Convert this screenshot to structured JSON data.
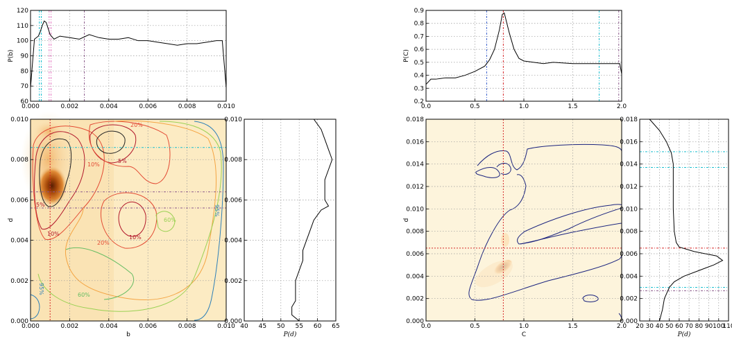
{
  "chart_data": [
    {
      "id": "left-top",
      "type": "line",
      "ylabel": "P(b)",
      "xlim": [
        0,
        0.01
      ],
      "ylim": [
        60,
        120
      ],
      "xticks": [
        "0.000",
        "0.002",
        "0.004",
        "0.006",
        "0.008",
        "0.010"
      ],
      "yticks": [
        "60",
        "70",
        "80",
        "90",
        "100",
        "110",
        "120"
      ],
      "x": [
        0,
        0.0002,
        0.0004,
        0.0005,
        0.0006,
        0.0007,
        0.0008,
        0.001,
        0.0012,
        0.0015,
        0.002,
        0.0025,
        0.003,
        0.0035,
        0.004,
        0.0045,
        0.005,
        0.0055,
        0.006,
        0.0065,
        0.007,
        0.0075,
        0.008,
        0.0085,
        0.009,
        0.0095,
        0.0098,
        0.01
      ],
      "values": [
        69,
        101,
        103,
        106,
        110,
        113,
        112,
        104,
        101,
        103,
        102,
        101,
        104,
        102,
        101,
        101,
        102,
        100,
        100,
        99,
        98,
        97,
        98,
        98,
        99,
        100,
        100,
        69
      ],
      "vlines": [
        {
          "x": 0.00045,
          "color": "#17becf"
        },
        {
          "x": 0.00055,
          "color": "#17becf"
        },
        {
          "x": 0.00095,
          "color": "#e377c2"
        },
        {
          "x": 0.00105,
          "color": "#e377c2"
        },
        {
          "x": 0.00275,
          "color": "#8b5a8b"
        }
      ]
    },
    {
      "id": "left-main",
      "type": "heatmap",
      "xlabel": "b",
      "ylabel": "d",
      "xlim": [
        0,
        0.01
      ],
      "ylim": [
        0,
        0.01
      ],
      "xticks": [
        "0.000",
        "0.002",
        "0.004",
        "0.006",
        "0.008",
        "0.010"
      ],
      "yticks": [
        "0.000",
        "0.002",
        "0.004",
        "0.006",
        "0.008",
        "0.010"
      ],
      "contour_labels": [
        "20%",
        "5%",
        "5%",
        "10%",
        "10%",
        "20%",
        "10%",
        "60%",
        "60%",
        "95%",
        "95%"
      ],
      "vline": {
        "x": 0.001,
        "color": "#d62728"
      },
      "hlines": [
        {
          "y": 0.0086,
          "color": "#17becf"
        },
        {
          "y": 0.0064,
          "color": "#8b5a8b"
        },
        {
          "y": 0.0056,
          "color": "#8b5a8b"
        }
      ]
    },
    {
      "id": "left-side",
      "type": "line",
      "xlabel": "P(d)",
      "xlim": [
        40,
        65
      ],
      "ylim": [
        0,
        0.01
      ],
      "xticks": [
        "40",
        "45",
        "50",
        "55",
        "60",
        "65"
      ],
      "yticks": [
        "0.000",
        "0.002",
        "0.004",
        "0.006",
        "0.008",
        "0.010"
      ],
      "y": [
        0,
        0.0003,
        0.0007,
        0.001,
        0.0015,
        0.002,
        0.0025,
        0.003,
        0.0035,
        0.004,
        0.0045,
        0.005,
        0.0055,
        0.0057,
        0.006,
        0.0065,
        0.007,
        0.0075,
        0.008,
        0.0085,
        0.009,
        0.0095,
        0.01
      ],
      "values": [
        55,
        53,
        53,
        54,
        54,
        54,
        55,
        56,
        56,
        57,
        58,
        59,
        61,
        63,
        62,
        62,
        62,
        63,
        64,
        63,
        62,
        61,
        59
      ]
    },
    {
      "id": "right-top",
      "type": "line",
      "ylabel": "P(C)",
      "xlim": [
        0,
        2
      ],
      "ylim": [
        0.2,
        0.9
      ],
      "xticks": [
        "0.0",
        "0.5",
        "1.0",
        "1.5",
        "2.0"
      ],
      "yticks": [
        "0.2",
        "0.3",
        "0.4",
        "0.5",
        "0.6",
        "0.7",
        "0.8",
        "0.9"
      ],
      "x": [
        0,
        0.05,
        0.1,
        0.2,
        0.3,
        0.4,
        0.5,
        0.6,
        0.65,
        0.7,
        0.75,
        0.78,
        0.8,
        0.85,
        0.9,
        0.95,
        1.0,
        1.1,
        1.2,
        1.3,
        1.5,
        1.7,
        1.9,
        1.98,
        2.0
      ],
      "values": [
        0.33,
        0.37,
        0.37,
        0.38,
        0.38,
        0.4,
        0.43,
        0.47,
        0.52,
        0.6,
        0.75,
        0.87,
        0.88,
        0.73,
        0.6,
        0.53,
        0.51,
        0.5,
        0.49,
        0.5,
        0.49,
        0.49,
        0.49,
        0.49,
        0.41
      ],
      "vlines": [
        {
          "x": 0.62,
          "color": "#3a5fcd"
        },
        {
          "x": 0.79,
          "color": "#d62728"
        },
        {
          "x": 1.77,
          "color": "#17becf"
        },
        {
          "x": 1.97,
          "color": "#8b5a8b"
        }
      ]
    },
    {
      "id": "right-main",
      "type": "heatmap",
      "xlabel": "C",
      "ylabel": "d",
      "xlim": [
        0,
        2
      ],
      "ylim": [
        0,
        0.018
      ],
      "xticks": [
        "0.0",
        "0.5",
        "1.0",
        "1.5",
        "2.0"
      ],
      "yticks": [
        "0.000",
        "0.002",
        "0.004",
        "0.006",
        "0.008",
        "0.010",
        "0.012",
        "0.014",
        "0.016",
        "0.018"
      ],
      "vline": {
        "x": 0.79,
        "color": "#d62728"
      },
      "hline": {
        "y": 0.0065,
        "color": "#d62728"
      }
    },
    {
      "id": "right-side",
      "type": "line",
      "xlabel": "P(d)",
      "xlim": [
        20,
        110
      ],
      "ylim": [
        0,
        0.018
      ],
      "xticks": [
        "20",
        "30",
        "40",
        "50",
        "60",
        "70",
        "80",
        "90",
        "100",
        "110"
      ],
      "yticks": [
        "0.000",
        "0.002",
        "0.004",
        "0.006",
        "0.008",
        "0.010",
        "0.012",
        "0.014",
        "0.016",
        "0.018"
      ],
      "y": [
        0,
        0.001,
        0.002,
        0.003,
        0.0035,
        0.004,
        0.0045,
        0.005,
        0.0054,
        0.0058,
        0.0062,
        0.0066,
        0.007,
        0.008,
        0.01,
        0.012,
        0.014,
        0.015,
        0.016,
        0.017,
        0.018
      ],
      "values": [
        40,
        43,
        45,
        50,
        55,
        65,
        80,
        95,
        104,
        98,
        75,
        60,
        57,
        55,
        54,
        54,
        54,
        52,
        47,
        40,
        30
      ],
      "hlines": [
        {
          "y": 0.0151,
          "color": "#17becf"
        },
        {
          "y": 0.0137,
          "color": "#17becf"
        },
        {
          "y": 0.0065,
          "color": "#d62728"
        },
        {
          "y": 0.003,
          "color": "#17becf"
        },
        {
          "y": 0.0027,
          "color": "#8b5a8b"
        }
      ]
    }
  ]
}
